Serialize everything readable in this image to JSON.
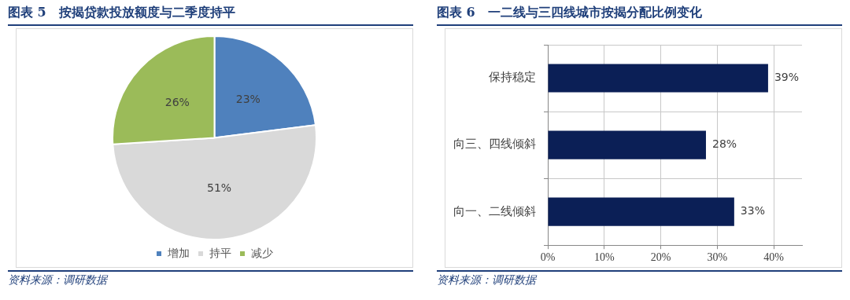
{
  "chart_data": [
    {
      "type": "pie",
      "title": "图表 5　按揭贷款投放额度与二季度持平",
      "categories": [
        "增加",
        "持平",
        "减少"
      ],
      "values": [
        23,
        51,
        26
      ],
      "colors": [
        "#4f81bd",
        "#d9d9d9",
        "#9bbb59"
      ],
      "value_labels": [
        "23%",
        "51%",
        "26%"
      ],
      "legend": "bottom",
      "annotations": [
        "资料来源：调研数据"
      ]
    },
    {
      "type": "bar",
      "orientation": "horizontal",
      "title": "图表 6　一二线与三四线城市按揭分配比例变化",
      "categories": [
        "保持稳定",
        "向三、四线倾斜",
        "向一、二线倾斜"
      ],
      "values": [
        39,
        28,
        33
      ],
      "color": "#0b1f56",
      "value_labels": [
        "39%",
        "28%",
        "33%"
      ],
      "xlim": [
        0,
        45
      ],
      "xticks": [
        {
          "value": 0,
          "label": "0%"
        },
        {
          "value": 10,
          "label": "10%"
        },
        {
          "value": 20,
          "label": "20%"
        },
        {
          "value": 30,
          "label": "30%"
        },
        {
          "value": 40,
          "label": "40%"
        }
      ],
      "grid": true,
      "annotations": [
        "资料来源：调研数据"
      ]
    }
  ]
}
